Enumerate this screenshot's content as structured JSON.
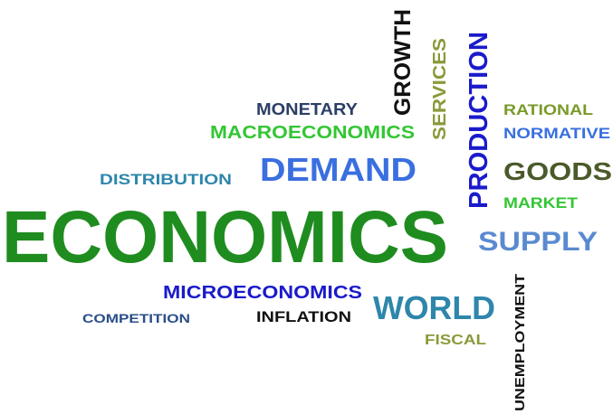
{
  "words": [
    "ECONOMICS",
    "MONETARY",
    "MACROECONOMICS",
    "DISTRIBUTION",
    "DEMAND",
    "GROWTH",
    "SERVICES",
    "PRODUCTION",
    "RATIONAL",
    "NORMATIVE",
    "GOODS",
    "MARKET",
    "SUPPLY",
    "MICROECONOMICS",
    "WORLD",
    "COMPETITION",
    "INFLATION",
    "FISCAL",
    "UNEMPLOYMENT"
  ]
}
